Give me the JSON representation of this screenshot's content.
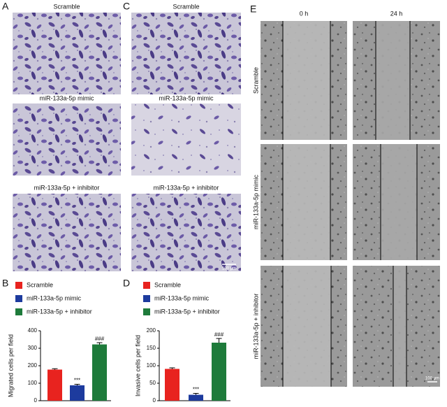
{
  "figure": {
    "panel_labels": [
      "A",
      "B",
      "C",
      "D",
      "E"
    ],
    "migration_captions": [
      "Scramble",
      "miR-133a-5p mimic",
      "miR-133a-5p + inhibitor"
    ],
    "invasion_captions": [
      "Scramble",
      "miR-133a-5p mimic",
      "miR-133a-5p + inhibitor"
    ],
    "invasion_scale_bar": "100 μm",
    "wound_times": [
      "0 h",
      "24 h"
    ],
    "wound_rows": [
      "Scramble",
      "miR-133a-5p mimic",
      "miR-133a-5p + inhibitor"
    ],
    "wound_scale_bar": "100 μm"
  },
  "chart_data": [
    {
      "type": "bar",
      "y_label": "Migrated cells per field",
      "ylim": [
        0,
        400
      ],
      "yticks": [
        0,
        100,
        200,
        300,
        400
      ],
      "series": [
        {
          "name": "Scramble",
          "color": "#e8231f",
          "values": [
            178
          ],
          "errors": [
            5
          ]
        },
        {
          "name": "miR-133a-5p mimic",
          "color": "#1d3b9e",
          "values": [
            88
          ],
          "errors": [
            6
          ],
          "annotation": "***"
        },
        {
          "name": "miR-133a-5p + inhibitor",
          "color": "#1e7b3b",
          "values": [
            322
          ],
          "errors": [
            10
          ],
          "annotation": "###"
        }
      ]
    },
    {
      "type": "bar",
      "y_label": "Invasive cells per field",
      "ylim": [
        0,
        200
      ],
      "yticks": [
        0,
        50,
        100,
        150,
        200
      ],
      "series": [
        {
          "name": "Scramble",
          "color": "#e8231f",
          "values": [
            91
          ],
          "errors": [
            3
          ]
        },
        {
          "name": "miR-133a-5p mimic",
          "color": "#1d3b9e",
          "values": [
            17
          ],
          "errors": [
            4
          ],
          "annotation": "***"
        },
        {
          "name": "miR-133a-5p + inhibitor",
          "color": "#1e7b3b",
          "values": [
            166
          ],
          "errors": [
            12
          ],
          "annotation": "###"
        }
      ]
    }
  ]
}
